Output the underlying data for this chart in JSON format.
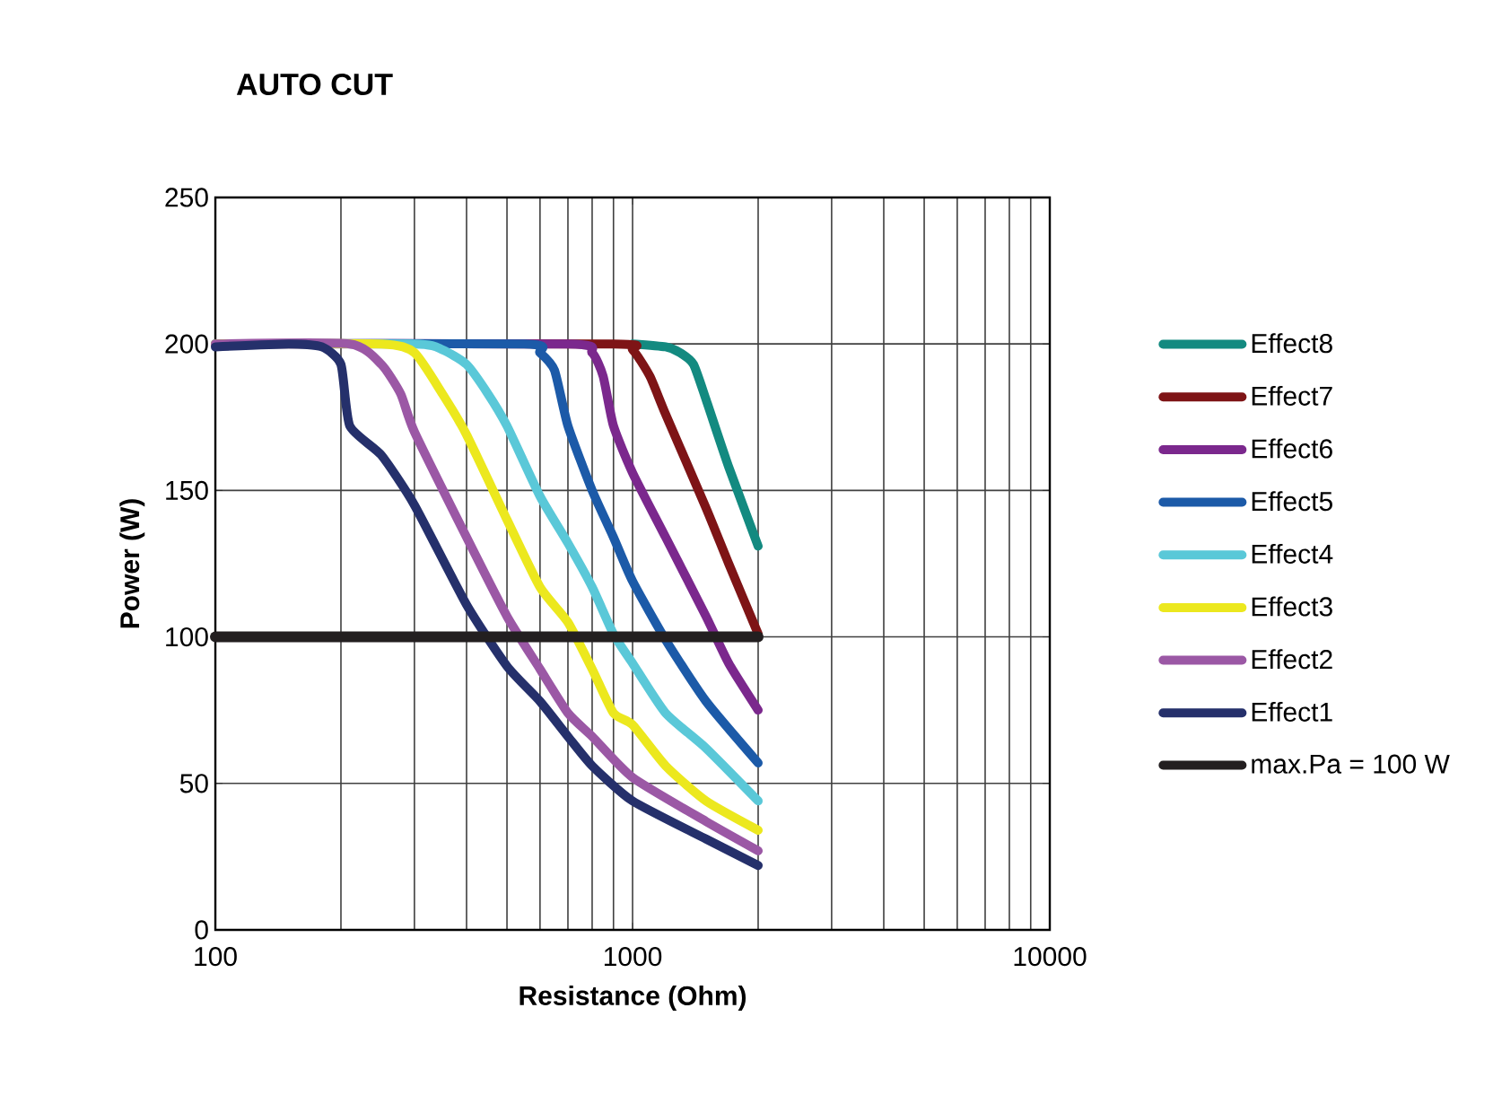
{
  "chart_data": {
    "type": "line",
    "title": "AUTO CUT",
    "xlabel": "Resistance (Ohm)",
    "ylabel": "Power (W)",
    "log": "x",
    "grid": true,
    "legend": "right",
    "xlim": [
      100,
      10000
    ],
    "xticks": [
      100,
      1000,
      10000
    ],
    "ylim": [
      0,
      250
    ],
    "yticks": [
      0,
      50,
      100,
      150,
      200,
      250
    ],
    "series": [
      {
        "name": "Effect8",
        "color": "#138a80",
        "x": [
          1000,
          1200,
          1300,
          1400,
          1500,
          1700,
          2000
        ],
        "values": [
          200,
          199,
          197,
          193,
          181,
          158,
          131
        ]
      },
      {
        "name": "Effect7",
        "color": "#7e1416",
        "x": [
          100,
          900,
          1000,
          1100,
          1200,
          1500,
          1700,
          2000
        ],
        "values": [
          200,
          200,
          198,
          189,
          176,
          144,
          125,
          101
        ]
      },
      {
        "name": "Effect6",
        "color": "#7b288d",
        "x": [
          100,
          700,
          800,
          850,
          900,
          1000,
          1200,
          1500,
          1700,
          2000
        ],
        "values": [
          200,
          200,
          197,
          189,
          172,
          156,
          134,
          107,
          91,
          75
        ]
      },
      {
        "name": "Effect5",
        "color": "#1c5aa8",
        "x": [
          100,
          550,
          600,
          650,
          700,
          800,
          900,
          1000,
          1200,
          1500,
          2000
        ],
        "values": [
          200,
          200,
          197,
          191,
          172,
          150,
          134,
          119,
          99,
          78,
          57
        ]
      },
      {
        "name": "Effect4",
        "color": "#5ac8d8",
        "x": [
          100,
          300,
          350,
          400,
          450,
          500,
          600,
          700,
          800,
          900,
          1000,
          1200,
          1500,
          2000
        ],
        "values": [
          200,
          200,
          198,
          193,
          183,
          172,
          148,
          132,
          117,
          101,
          91,
          74,
          62,
          44
        ]
      },
      {
        "name": "Effect3",
        "color": "#ece81e",
        "x": [
          100,
          250,
          300,
          350,
          400,
          500,
          600,
          700,
          800,
          900,
          1000,
          1200,
          1500,
          2000
        ],
        "values": [
          200,
          200,
          197,
          183,
          169,
          140,
          117,
          105,
          89,
          74,
          70,
          56,
          44,
          34
        ]
      },
      {
        "name": "Effect2",
        "color": "#9b58a5",
        "x": [
          100,
          210,
          250,
          278,
          300,
          400,
          500,
          600,
          700,
          800,
          1000,
          1500,
          2000
        ],
        "values": [
          200,
          200,
          193,
          183,
          170,
          134,
          107,
          89,
          74,
          66,
          52,
          37,
          27
        ]
      },
      {
        "name": "Effect1",
        "color": "#25306b",
        "x": [
          100,
          150,
          180,
          200,
          210,
          250,
          300,
          400,
          500,
          600,
          700,
          800,
          1000,
          1500,
          2000
        ],
        "values": [
          199,
          200,
          199,
          193,
          172,
          162,
          145,
          111,
          90,
          78,
          66,
          56,
          44,
          31,
          22
        ]
      },
      {
        "name": "max.Pa = 100 W",
        "color": "#231f20",
        "x": [
          100,
          2000
        ],
        "values": [
          100,
          100
        ]
      }
    ]
  }
}
